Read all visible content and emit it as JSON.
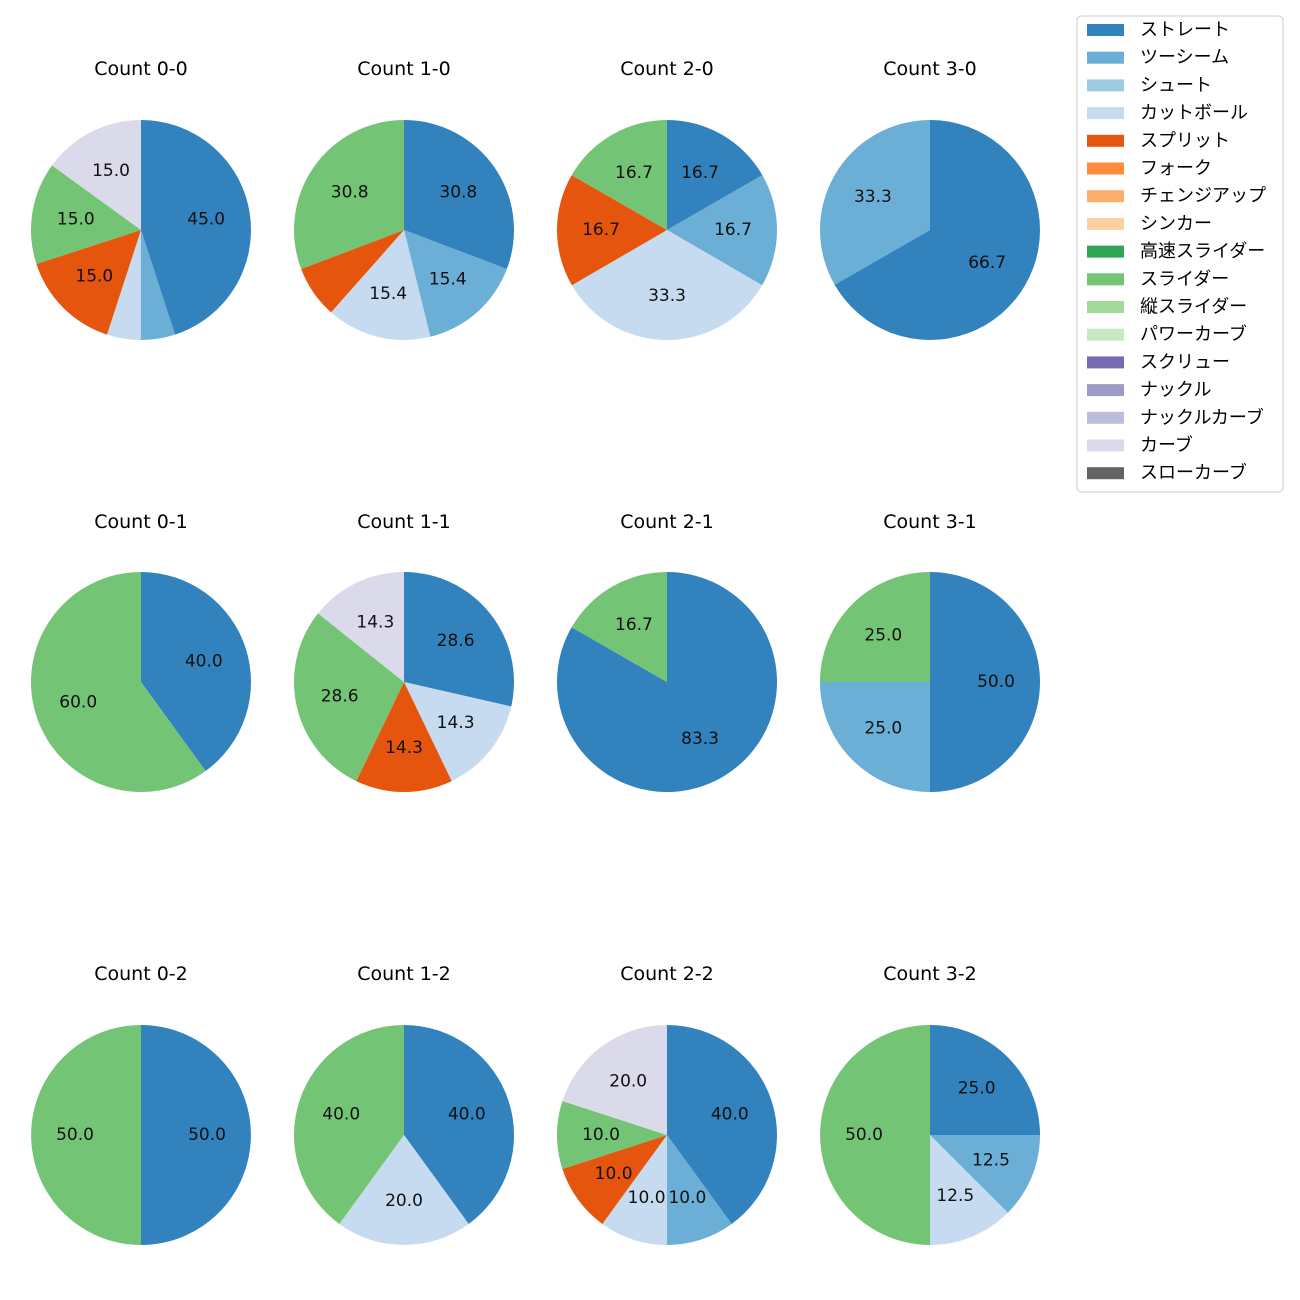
{
  "colors": {
    "ストレート": "#3182bd",
    "ツーシーム": "#6baed6",
    "シュート": "#9ecae1",
    "カットボール": "#c6dbef",
    "スプリット": "#e6550d",
    "フォーク": "#fd8d3c",
    "チェンジアップ": "#fdae6b",
    "シンカー": "#fdd0a2",
    "高速スライダー": "#31a354",
    "スライダー": "#74c476",
    "縦スライダー": "#a1d99b",
    "パワーカーブ": "#c7e9c0",
    "スクリュー": "#756bb1",
    "ナックル": "#9e9ac8",
    "ナックルカーブ": "#bcbddc",
    "カーブ": "#dadaeb",
    "スローカーブ": "#636363"
  },
  "chart_data": {
    "type": "pie",
    "legend_position": "top-right",
    "legend": [
      "ストレート",
      "ツーシーム",
      "シュート",
      "カットボール",
      "スプリット",
      "フォーク",
      "チェンジアップ",
      "シンカー",
      "高速スライダー",
      "スライダー",
      "縦スライダー",
      "パワーカーブ",
      "スクリュー",
      "ナックル",
      "ナックルカーブ",
      "カーブ",
      "スローカーブ"
    ],
    "charts": [
      {
        "title": "Count 0-0",
        "slices": [
          {
            "label": "ストレート",
            "value": 45.0,
            "text": "45.0"
          },
          {
            "label": "ツーシーム",
            "value": 5.0,
            "text": ""
          },
          {
            "label": "カットボール",
            "value": 5.0,
            "text": ""
          },
          {
            "label": "スプリット",
            "value": 15.0,
            "text": "15.0"
          },
          {
            "label": "スライダー",
            "value": 15.0,
            "text": "15.0"
          },
          {
            "label": "カーブ",
            "value": 15.0,
            "text": "15.0"
          }
        ]
      },
      {
        "title": "Count 1-0",
        "slices": [
          {
            "label": "ストレート",
            "value": 30.8,
            "text": "30.8"
          },
          {
            "label": "ツーシーム",
            "value": 15.4,
            "text": "15.4"
          },
          {
            "label": "カットボール",
            "value": 15.4,
            "text": "15.4"
          },
          {
            "label": "スプリット",
            "value": 7.7,
            "text": ""
          },
          {
            "label": "スライダー",
            "value": 30.8,
            "text": "30.8"
          }
        ]
      },
      {
        "title": "Count 2-0",
        "slices": [
          {
            "label": "ストレート",
            "value": 16.7,
            "text": "16.7"
          },
          {
            "label": "ツーシーム",
            "value": 16.7,
            "text": "16.7"
          },
          {
            "label": "カットボール",
            "value": 33.3,
            "text": "33.3"
          },
          {
            "label": "スプリット",
            "value": 16.7,
            "text": "16.7"
          },
          {
            "label": "スライダー",
            "value": 16.7,
            "text": "16.7"
          }
        ]
      },
      {
        "title": "Count 3-0",
        "slices": [
          {
            "label": "ストレート",
            "value": 66.7,
            "text": "66.7"
          },
          {
            "label": "ツーシーム",
            "value": 33.3,
            "text": "33.3"
          }
        ]
      },
      {
        "title": "Count 0-1",
        "slices": [
          {
            "label": "ストレート",
            "value": 40.0,
            "text": "40.0"
          },
          {
            "label": "スライダー",
            "value": 60.0,
            "text": "60.0"
          }
        ]
      },
      {
        "title": "Count 1-1",
        "slices": [
          {
            "label": "ストレート",
            "value": 28.6,
            "text": "28.6"
          },
          {
            "label": "カットボール",
            "value": 14.3,
            "text": "14.3"
          },
          {
            "label": "スプリット",
            "value": 14.3,
            "text": "14.3"
          },
          {
            "label": "スライダー",
            "value": 28.6,
            "text": "28.6"
          },
          {
            "label": "カーブ",
            "value": 14.3,
            "text": "14.3"
          }
        ]
      },
      {
        "title": "Count 2-1",
        "slices": [
          {
            "label": "ストレート",
            "value": 83.3,
            "text": "83.3"
          },
          {
            "label": "スライダー",
            "value": 16.7,
            "text": "16.7"
          }
        ]
      },
      {
        "title": "Count 3-1",
        "slices": [
          {
            "label": "ストレート",
            "value": 50.0,
            "text": "50.0"
          },
          {
            "label": "ツーシーム",
            "value": 25.0,
            "text": "25.0"
          },
          {
            "label": "スライダー",
            "value": 25.0,
            "text": "25.0"
          }
        ]
      },
      {
        "title": "Count 0-2",
        "slices": [
          {
            "label": "ストレート",
            "value": 50.0,
            "text": "50.0"
          },
          {
            "label": "スライダー",
            "value": 50.0,
            "text": "50.0"
          }
        ]
      },
      {
        "title": "Count 1-2",
        "slices": [
          {
            "label": "ストレート",
            "value": 40.0,
            "text": "40.0"
          },
          {
            "label": "カットボール",
            "value": 20.0,
            "text": "20.0"
          },
          {
            "label": "スライダー",
            "value": 40.0,
            "text": "40.0"
          }
        ]
      },
      {
        "title": "Count 2-2",
        "slices": [
          {
            "label": "ストレート",
            "value": 40.0,
            "text": "40.0"
          },
          {
            "label": "ツーシーム",
            "value": 10.0,
            "text": "10.0"
          },
          {
            "label": "カットボール",
            "value": 10.0,
            "text": "10.0"
          },
          {
            "label": "スプリット",
            "value": 10.0,
            "text": "10.0"
          },
          {
            "label": "スライダー",
            "value": 10.0,
            "text": "10.0"
          },
          {
            "label": "カーブ",
            "value": 20.0,
            "text": "20.0"
          }
        ]
      },
      {
        "title": "Count 3-2",
        "slices": [
          {
            "label": "ストレート",
            "value": 25.0,
            "text": "25.0"
          },
          {
            "label": "ツーシーム",
            "value": 12.5,
            "text": "12.5"
          },
          {
            "label": "カットボール",
            "value": 12.5,
            "text": "12.5"
          },
          {
            "label": "スライダー",
            "value": 50.0,
            "text": "50.0"
          }
        ]
      }
    ]
  }
}
